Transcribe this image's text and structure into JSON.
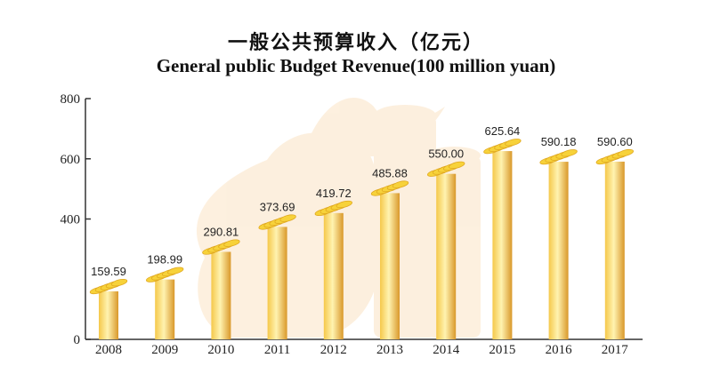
{
  "title_cn": "一般公共预算收入（亿元）",
  "title_en": "General public Budget Revenue(100 million yuan)",
  "colors": {
    "bar_light": "#fff3b0",
    "bar_mid": "#f5c84a",
    "bar_dark": "#d9982a",
    "coin": "#f7d23a",
    "coin_edge": "#e0a820",
    "watermark": "#fbe3c4",
    "axis": "#333333"
  },
  "chart_data": {
    "type": "bar",
    "title": "一般公共预算收入（亿元）",
    "subtitle": "General public Budget Revenue(100 million yuan)",
    "xlabel": "",
    "ylabel": "",
    "categories": [
      "2008",
      "2009",
      "2010",
      "2011",
      "2012",
      "2013",
      "2014",
      "2015",
      "2016",
      "2017"
    ],
    "values": [
      159.59,
      198.99,
      290.81,
      373.69,
      419.72,
      485.88,
      550.0,
      625.64,
      590.18,
      590.6
    ],
    "value_labels": [
      "159.59",
      "198.99",
      "290.81",
      "373.69",
      "419.72",
      "485.88",
      "550.00",
      "625.64",
      "590.18",
      "590.60"
    ],
    "ylim": [
      0,
      800
    ],
    "yticks": [
      0,
      400,
      600,
      800
    ],
    "ytick_labels": [
      "0",
      "400",
      "600",
      "800"
    ],
    "grid": false,
    "legend": "none"
  }
}
